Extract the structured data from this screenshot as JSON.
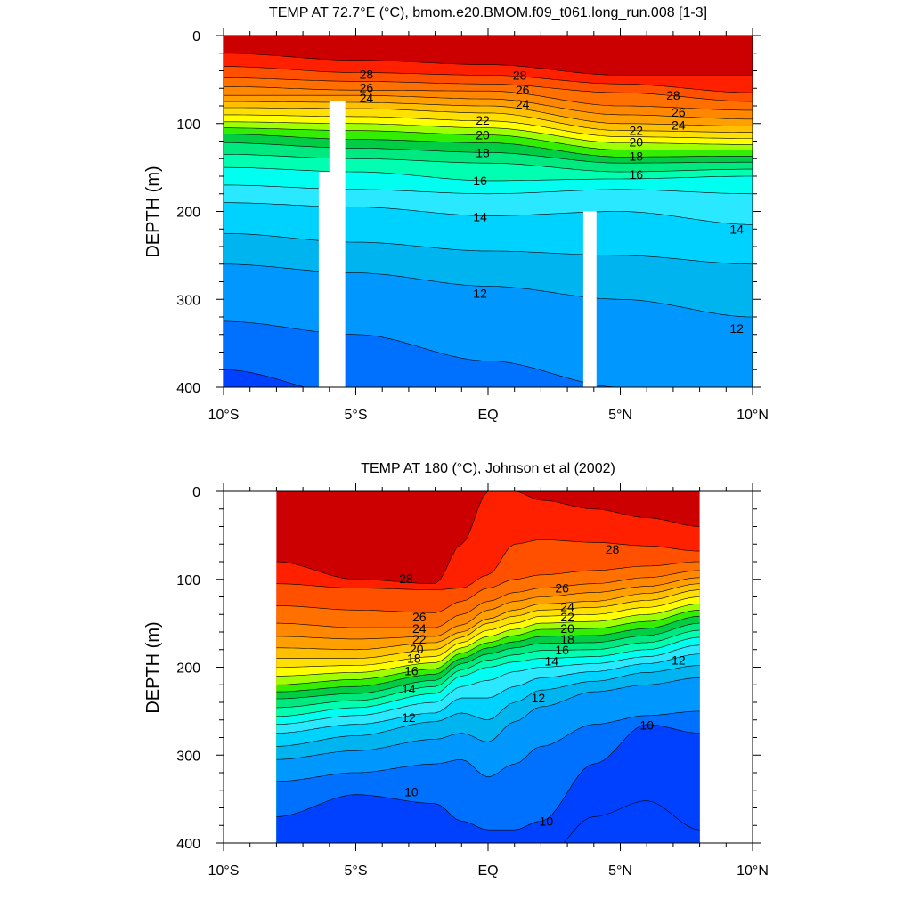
{
  "chart_data": [
    {
      "type": "contour",
      "title": "TEMP AT  72.7°E (°C), bmom.e20.BMOM.f09_t061.long_run.008 [1-3]",
      "ylabel": "DEPTH (m)",
      "xlabel": "",
      "x_range": [
        -10,
        10
      ],
      "y_range": [
        0,
        400
      ],
      "y_reversed": true,
      "x_ticks": [
        "10°S",
        "5°S",
        "EQ",
        "5°N",
        "10°N"
      ],
      "y_ticks": [
        0,
        100,
        200,
        300,
        400
      ],
      "contour_interval": 1,
      "depth_profile_lat": [
        -10,
        -5,
        0,
        5,
        10
      ],
      "isotherm_depths": {
        "29": [
          20,
          28,
          33,
          45,
          45
        ],
        "28": [
          35,
          42,
          45,
          55,
          65
        ],
        "27": [
          48,
          52,
          55,
          65,
          75
        ],
        "26": [
          58,
          62,
          63,
          80,
          85
        ],
        "25": [
          68,
          68,
          72,
          90,
          95
        ],
        "24": [
          75,
          76,
          80,
          100,
          103
        ],
        "23": [
          82,
          83,
          88,
          108,
          110
        ],
        "22": [
          90,
          92,
          97,
          115,
          117
        ],
        "21": [
          98,
          100,
          105,
          122,
          124
        ],
        "20": [
          105,
          108,
          113,
          130,
          130
        ],
        "19": [
          112,
          118,
          122,
          138,
          137
        ],
        "18": [
          122,
          128,
          133,
          145,
          144
        ],
        "17": [
          135,
          140,
          145,
          155,
          152
        ],
        "16": [
          150,
          155,
          165,
          163,
          160
        ],
        "15": [
          170,
          175,
          180,
          175,
          180
        ],
        "14": [
          190,
          195,
          205,
          200,
          215
        ],
        "13": [
          225,
          235,
          245,
          250,
          260
        ],
        "12": [
          260,
          270,
          285,
          300,
          320
        ],
        "11": [
          325,
          340,
          370,
          400,
          420
        ],
        "10": [
          380,
          410,
          440,
          460,
          480
        ]
      },
      "contour_labels": [
        {
          "text": "28",
          "lat": -4.6,
          "depth": 44
        },
        {
          "text": "26",
          "lat": -4.6,
          "depth": 59
        },
        {
          "text": "24",
          "lat": -4.6,
          "depth": 71
        },
        {
          "text": "28",
          "lat": 1.2,
          "depth": 45
        },
        {
          "text": "26",
          "lat": 1.3,
          "depth": 62
        },
        {
          "text": "24",
          "lat": 1.3,
          "depth": 78
        },
        {
          "text": "22",
          "lat": -0.2,
          "depth": 96
        },
        {
          "text": "20",
          "lat": -0.2,
          "depth": 113
        },
        {
          "text": "18",
          "lat": -0.2,
          "depth": 133
        },
        {
          "text": "16",
          "lat": -0.3,
          "depth": 165
        },
        {
          "text": "14",
          "lat": -0.3,
          "depth": 206
        },
        {
          "text": "12",
          "lat": -0.3,
          "depth": 293
        },
        {
          "text": "28",
          "lat": 7.0,
          "depth": 68
        },
        {
          "text": "26",
          "lat": 7.2,
          "depth": 87
        },
        {
          "text": "24",
          "lat": 7.2,
          "depth": 102
        },
        {
          "text": "22",
          "lat": 5.6,
          "depth": 108
        },
        {
          "text": "20",
          "lat": 5.6,
          "depth": 121
        },
        {
          "text": "18",
          "lat": 5.6,
          "depth": 137
        },
        {
          "text": "16",
          "lat": 5.6,
          "depth": 158
        },
        {
          "text": "14",
          "lat": 9.4,
          "depth": 220
        },
        {
          "text": "12",
          "lat": 9.4,
          "depth": 333
        }
      ],
      "missing_columns": [
        {
          "lat": [
            -6.4,
            -5.7
          ],
          "depth": [
            155,
            400
          ]
        },
        {
          "lat": [
            -6.0,
            -5.4
          ],
          "depth": [
            75,
            400
          ]
        },
        {
          "lat": [
            3.6,
            4.1
          ],
          "depth": [
            200,
            400
          ]
        }
      ]
    },
    {
      "type": "contour",
      "title": "TEMP AT 180 (°C), Johnson et al (2002)",
      "ylabel": "DEPTH (m)",
      "xlabel": "",
      "x_range": [
        -10,
        10
      ],
      "y_range": [
        0,
        400
      ],
      "y_reversed": true,
      "x_ticks": [
        "10°S",
        "5°S",
        "EQ",
        "5°N",
        "10°N"
      ],
      "y_ticks": [
        0,
        100,
        200,
        300,
        400
      ],
      "contour_interval": 1,
      "data_lat_range": [
        -8,
        8
      ],
      "depth_profile_lat": [
        -8,
        -5,
        -2,
        -1,
        0,
        1,
        2,
        4,
        6,
        8
      ],
      "isotherm_depths": {
        "29": [
          80,
          100,
          105,
          60,
          0,
          0,
          10,
          20,
          30,
          40
        ],
        "28": [
          105,
          110,
          112,
          110,
          95,
          60,
          55,
          58,
          62,
          68
        ],
        "27": [
          130,
          135,
          138,
          125,
          110,
          100,
          95,
          90,
          85,
          80
        ],
        "26": [
          150,
          155,
          155,
          140,
          125,
          115,
          110,
          105,
          98,
          90
        ],
        "25": [
          165,
          168,
          165,
          152,
          135,
          125,
          120,
          115,
          108,
          98
        ],
        "24": [
          178,
          180,
          172,
          160,
          145,
          135,
          128,
          125,
          116,
          105
        ],
        "23": [
          190,
          190,
          180,
          166,
          150,
          142,
          135,
          132,
          124,
          112
        ],
        "22": [
          200,
          198,
          188,
          172,
          158,
          150,
          142,
          140,
          132,
          120
        ],
        "21": [
          210,
          206,
          195,
          178,
          165,
          157,
          150,
          148,
          140,
          128
        ],
        "20": [
          220,
          214,
          202,
          184,
          172,
          164,
          157,
          156,
          148,
          135
        ],
        "19": [
          228,
          222,
          208,
          190,
          178,
          171,
          165,
          164,
          156,
          142
        ],
        "18": [
          236,
          230,
          215,
          196,
          185,
          178,
          173,
          172,
          164,
          150
        ],
        "17": [
          246,
          238,
          222,
          203,
          192,
          186,
          181,
          180,
          172,
          158
        ],
        "16": [
          256,
          246,
          230,
          210,
          200,
          194,
          190,
          188,
          180,
          166
        ],
        "15": [
          265,
          255,
          240,
          222,
          215,
          205,
          200,
          196,
          188,
          175
        ],
        "14": [
          275,
          265,
          252,
          235,
          235,
          222,
          212,
          205,
          196,
          185
        ],
        "13": [
          290,
          278,
          262,
          252,
          260,
          240,
          226,
          216,
          206,
          198
        ],
        "12": [
          305,
          295,
          282,
          275,
          285,
          262,
          245,
          228,
          220,
          212
        ],
        "11": [
          330,
          320,
          310,
          305,
          325,
          310,
          290,
          265,
          255,
          250
        ],
        "10": [
          370,
          345,
          355,
          375,
          385,
          385,
          375,
          310,
          265,
          275
        ],
        "9.5": [
          420,
          420,
          420,
          420,
          420,
          420,
          420,
          370,
          352,
          385
        ]
      },
      "contour_labels": [
        {
          "text": "28",
          "lat": -3.1,
          "depth": 99
        },
        {
          "text": "28",
          "lat": 4.7,
          "depth": 66
        },
        {
          "text": "26",
          "lat": 2.8,
          "depth": 110
        },
        {
          "text": "26",
          "lat": -2.6,
          "depth": 143
        },
        {
          "text": "24",
          "lat": -2.6,
          "depth": 156
        },
        {
          "text": "22",
          "lat": -2.6,
          "depth": 168
        },
        {
          "text": "20",
          "lat": -2.7,
          "depth": 179
        },
        {
          "text": "18",
          "lat": -2.8,
          "depth": 190
        },
        {
          "text": "16",
          "lat": -2.9,
          "depth": 204
        },
        {
          "text": "14",
          "lat": -3.0,
          "depth": 225
        },
        {
          "text": "12",
          "lat": -3.0,
          "depth": 257
        },
        {
          "text": "24",
          "lat": 3.0,
          "depth": 131
        },
        {
          "text": "22",
          "lat": 3.0,
          "depth": 143
        },
        {
          "text": "20",
          "lat": 3.0,
          "depth": 156
        },
        {
          "text": "18",
          "lat": 3.0,
          "depth": 168
        },
        {
          "text": "16",
          "lat": 2.8,
          "depth": 180
        },
        {
          "text": "14",
          "lat": 2.4,
          "depth": 193
        },
        {
          "text": "12",
          "lat": 1.9,
          "depth": 235
        },
        {
          "text": "12",
          "lat": 7.2,
          "depth": 192
        },
        {
          "text": "10",
          "lat": 6.0,
          "depth": 266
        },
        {
          "text": "10",
          "lat": -2.9,
          "depth": 342
        },
        {
          "text": "10",
          "lat": 2.2,
          "depth": 375
        }
      ]
    }
  ]
}
